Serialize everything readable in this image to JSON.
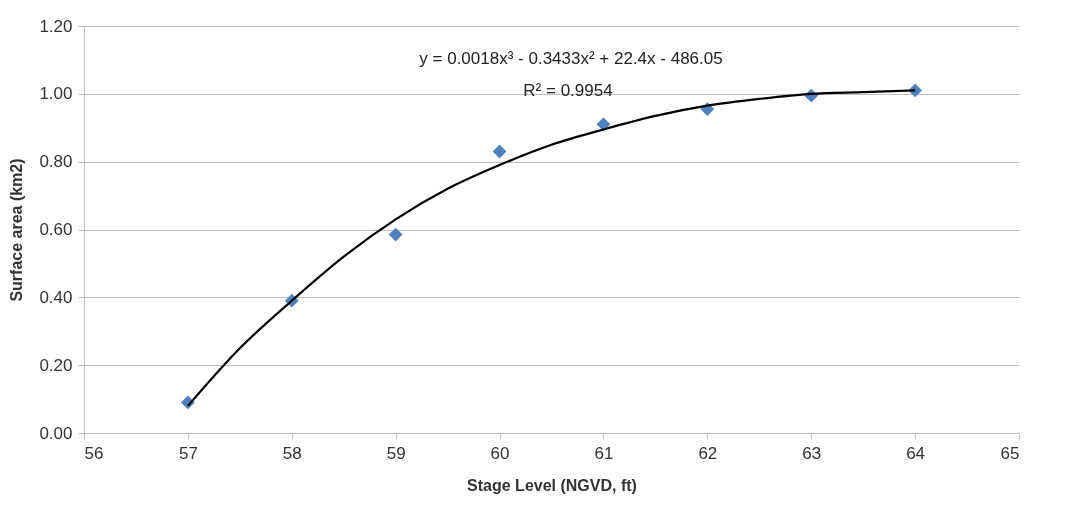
{
  "chart_data": {
    "type": "scatter",
    "xlabel": "Stage Level  (NGVD, ft)",
    "ylabel": "Surface area (km2)",
    "annotations": [
      "y = 0.0018x³ - 0.3433x² + 22.4x - 486.05",
      "R² = 0.9954"
    ],
    "xlim": [
      56,
      65
    ],
    "xticks": [
      56,
      57,
      58,
      59,
      60,
      61,
      62,
      63,
      64,
      65
    ],
    "ylim": [
      0,
      1.2
    ],
    "yticks": [
      {
        "value": 0,
        "label": "0.00"
      },
      {
        "value": 0.2,
        "label": "0.20"
      },
      {
        "value": 0.4,
        "label": "0.40"
      },
      {
        "value": 0.6,
        "label": "0.60"
      },
      {
        "value": 0.8,
        "label": "0.80"
      },
      {
        "value": 1,
        "label": "1.00"
      },
      {
        "value": 1.2,
        "label": "1.20"
      }
    ],
    "grid": "y",
    "marker": "diamond",
    "series": [
      {
        "color": "#4f81bd",
        "x": [
          57,
          58,
          59,
          60,
          61,
          62,
          63,
          64
        ],
        "values": [
          0.09,
          0.39,
          0.585,
          0.83,
          0.91,
          0.955,
          0.995,
          1.01
        ]
      },
      {
        "type": "line",
        "marker": "none",
        "color": "#000000",
        "x": [
          57,
          57.5,
          58,
          58.5,
          59,
          59.5,
          60,
          60.5,
          61,
          61.5,
          62,
          62.5,
          63,
          63.5,
          64
        ],
        "values": [
          0.08,
          0.25,
          0.39,
          0.52,
          0.63,
          0.72,
          0.79,
          0.85,
          0.895,
          0.935,
          0.965,
          0.985,
          1.0,
          1.005,
          1.01
        ]
      }
    ]
  }
}
